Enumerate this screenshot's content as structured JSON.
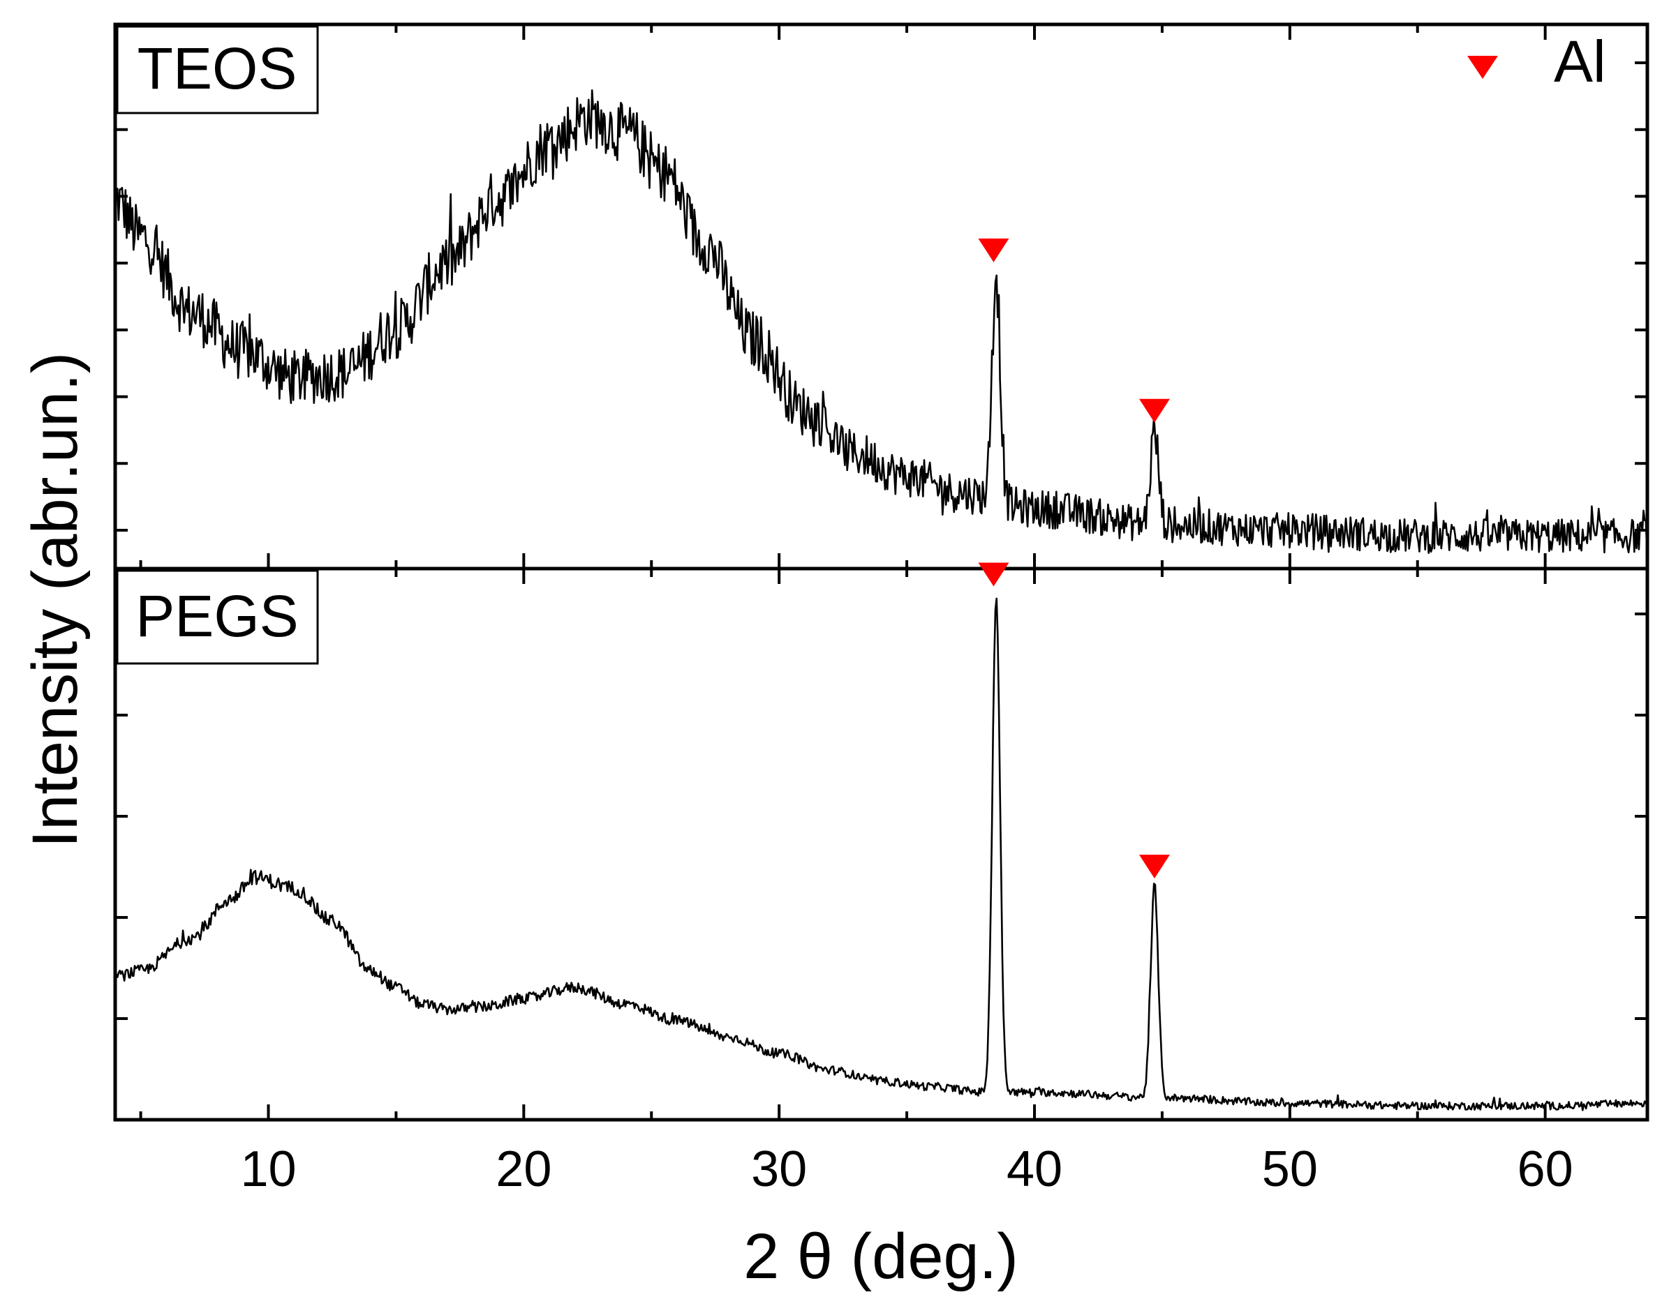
{
  "chart_data": {
    "type": "line",
    "xlabel": "2 θ (deg.)",
    "ylabel": "Intensity (abr.un.)",
    "xlim": [
      4,
      64
    ],
    "x_ticks": [
      10,
      20,
      30,
      40,
      50,
      60
    ],
    "x_tick_labels": [
      "10",
      "20",
      "30",
      "40",
      "50",
      "60"
    ],
    "legend": {
      "marker": "down-triangle",
      "label": "Al",
      "color": "#ff0000",
      "position": "top-right"
    },
    "panels": [
      {
        "name": "TEOS",
        "label": "TEOS",
        "ylim": [
          0,
          100
        ],
        "y_ticks_count": 8,
        "noise_amplitude": 5.5,
        "baseline_points": [
          [
            4,
            68
          ],
          [
            5,
            61
          ],
          [
            7,
            47
          ],
          [
            9,
            40
          ],
          [
            11,
            35
          ],
          [
            13,
            36
          ],
          [
            15,
            44
          ],
          [
            17,
            56
          ],
          [
            19,
            68
          ],
          [
            21,
            78
          ],
          [
            22.5,
            83
          ],
          [
            24,
            80
          ],
          [
            25.5,
            73
          ],
          [
            27,
            60
          ],
          [
            29,
            42
          ],
          [
            31,
            29
          ],
          [
            33,
            21
          ],
          [
            35,
            17
          ],
          [
            37,
            14
          ],
          [
            40,
            11
          ],
          [
            45,
            8
          ],
          [
            50,
            7
          ],
          [
            55,
            6
          ],
          [
            60,
            6
          ],
          [
            64,
            6
          ]
        ],
        "peaks": [
          {
            "x": 38.5,
            "height": 42,
            "width": 0.16
          },
          {
            "x": 44.7,
            "height": 17,
            "width": 0.16
          }
        ],
        "al_markers_2theta": [
          38.4,
          44.7
        ]
      },
      {
        "name": "PEGS",
        "label": "PEGS",
        "ylim": [
          0,
          100
        ],
        "y_ticks_count": 5,
        "noise_amplitude": 1.3,
        "baseline_points": [
          [
            4,
            26
          ],
          [
            5,
            27
          ],
          [
            7,
            33
          ],
          [
            8.5,
            40
          ],
          [
            9.5,
            44
          ],
          [
            11,
            42
          ],
          [
            12.5,
            36
          ],
          [
            14,
            27
          ],
          [
            15,
            24
          ],
          [
            16,
            21
          ],
          [
            17,
            20
          ],
          [
            18.5,
            20.5
          ],
          [
            20,
            22
          ],
          [
            22,
            24
          ],
          [
            24,
            21
          ],
          [
            26,
            18
          ],
          [
            28,
            15
          ],
          [
            30,
            12
          ],
          [
            32,
            9
          ],
          [
            34,
            7
          ],
          [
            36,
            6
          ],
          [
            38,
            5
          ],
          [
            40,
            5
          ],
          [
            45,
            4
          ],
          [
            50,
            3
          ],
          [
            55,
            2.5
          ],
          [
            60,
            2.5
          ],
          [
            64,
            3
          ]
        ],
        "peaks": [
          {
            "x": 38.5,
            "height": 90,
            "width": 0.15
          },
          {
            "x": 44.7,
            "height": 38,
            "width": 0.15
          }
        ],
        "al_markers_2theta": [
          38.4,
          44.7
        ]
      }
    ]
  }
}
